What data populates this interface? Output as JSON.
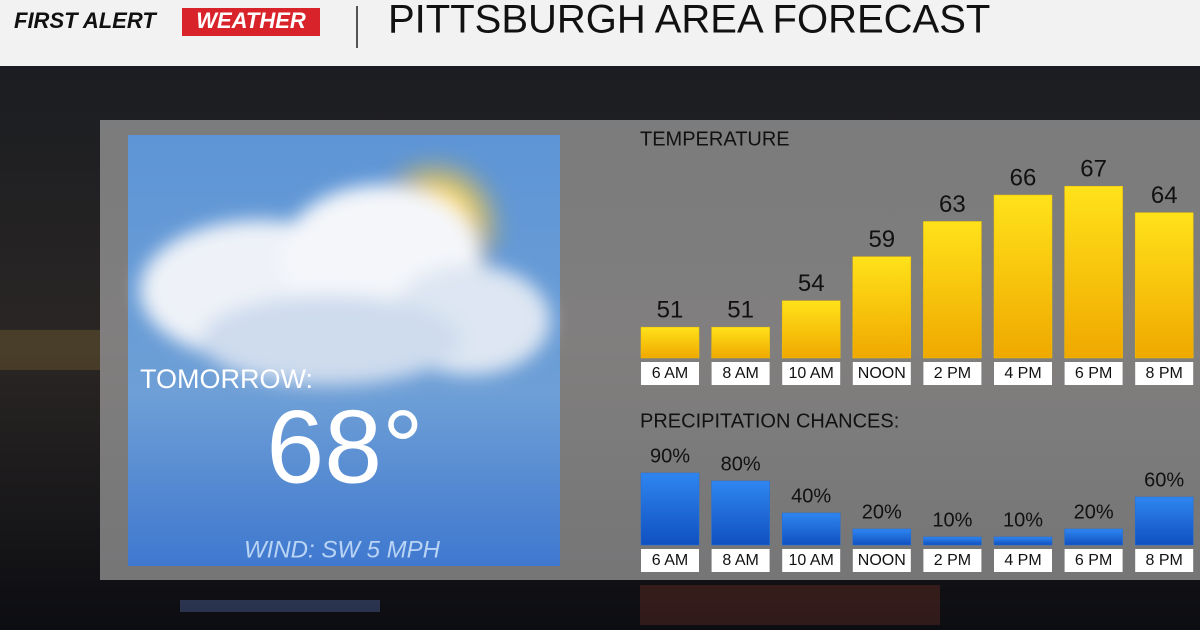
{
  "header": {
    "logo_first": "FIRST ALERT",
    "logo_weather": "WEATHER",
    "title": "PITTSBURGH AREA FORECAST"
  },
  "today_panel": {
    "label": "TOMORROW:",
    "temperature": "68°",
    "wind": "WIND: SW 5 MPH"
  },
  "chart_data": [
    {
      "type": "bar",
      "title": "TEMPERATURE",
      "categories": [
        "6 AM",
        "8 AM",
        "10 AM",
        "NOON",
        "2 PM",
        "4 PM",
        "6 PM",
        "8 PM"
      ],
      "values": [
        51,
        51,
        54,
        59,
        63,
        66,
        67,
        64
      ],
      "color": "#f2c200",
      "ylim": [
        47.5,
        68.5
      ]
    },
    {
      "type": "bar",
      "title": "PRECIPITATION CHANCES:",
      "categories": [
        "6 AM",
        "8 AM",
        "10 AM",
        "NOON",
        "2 PM",
        "4 PM",
        "6 PM",
        "8 PM"
      ],
      "values": [
        90,
        80,
        40,
        20,
        10,
        10,
        20,
        60
      ],
      "value_labels": [
        "90%",
        "80%",
        "40%",
        "20%",
        "10%",
        "10%",
        "20%",
        "60%"
      ],
      "color": "#1c6fe0",
      "ylim": [
        0,
        100
      ]
    }
  ]
}
